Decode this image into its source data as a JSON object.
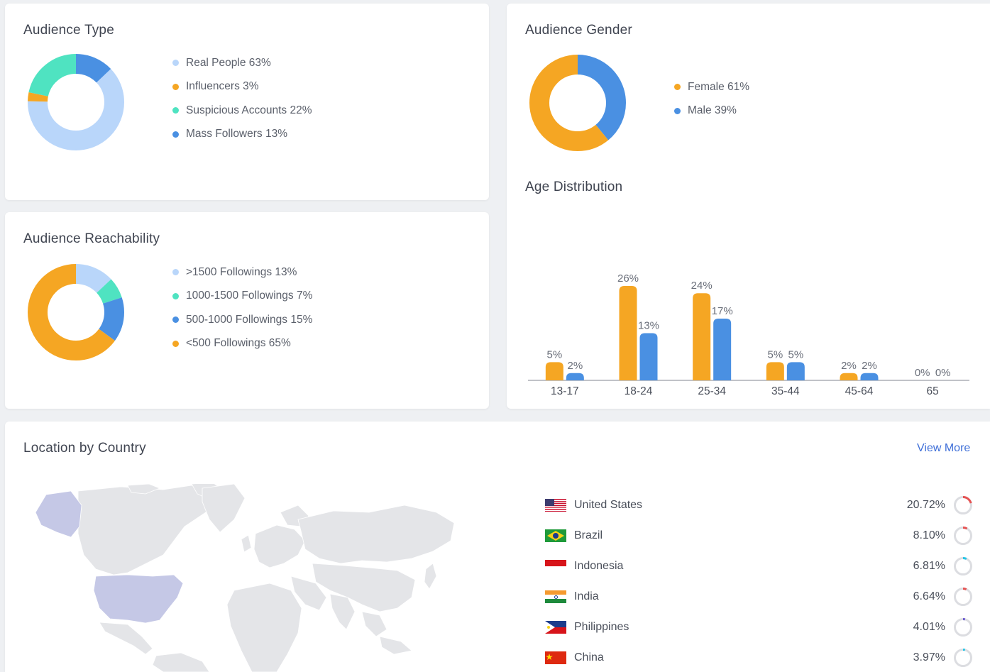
{
  "audience_type": {
    "title": "Audience Type",
    "legend": [
      {
        "label": "Real People 63%",
        "color": "#b9d6fa",
        "value": 63
      },
      {
        "label": "Influencers 3%",
        "color": "#f5a623",
        "value": 3
      },
      {
        "label": "Suspicious Accounts 22%",
        "color": "#4fe3c1",
        "value": 22
      },
      {
        "label": "Mass Followers 13%",
        "color": "#4a90e2",
        "value": 13
      }
    ]
  },
  "audience_reachability": {
    "title": "Audience Reachability",
    "legend": [
      {
        "label": ">1500 Followings 13%",
        "color": "#b9d6fa",
        "value": 13
      },
      {
        "label": "1000-1500 Followings 7%",
        "color": "#4fe3c1",
        "value": 7
      },
      {
        "label": "500-1000 Followings 15%",
        "color": "#4a90e2",
        "value": 15
      },
      {
        "label": "<500 Followings 65%",
        "color": "#f5a623",
        "value": 65
      }
    ]
  },
  "audience_gender": {
    "title": "Audience Gender",
    "legend": [
      {
        "label": "Female 61%",
        "color": "#f5a623",
        "value": 61
      },
      {
        "label": "Male 39%",
        "color": "#4a90e2",
        "value": 39
      }
    ]
  },
  "age_distribution": {
    "title": "Age Distribution"
  },
  "chart_data": {
    "type": "bar",
    "categories": [
      "13-17",
      "18-24",
      "25-34",
      "35-44",
      "45-64",
      "65"
    ],
    "series": [
      {
        "color": "#f5a623",
        "values": [
          5,
          26,
          24,
          5,
          2,
          0
        ]
      },
      {
        "color": "#4a90e2",
        "values": [
          2,
          13,
          17,
          5,
          2,
          0
        ]
      }
    ],
    "value_labels": [
      [
        "5%",
        "26%",
        "24%",
        "5%",
        "2%",
        "0%"
      ],
      [
        "2%",
        "13%",
        "17%",
        "5%",
        "2%",
        "0%"
      ]
    ],
    "ylim": [
      0,
      26
    ]
  },
  "location": {
    "title": "Location by Country",
    "view_more": "View More",
    "countries": [
      {
        "name": "United States",
        "pct": "20.72%",
        "value": 20.72,
        "ring_color": "#e55353",
        "flag": "us"
      },
      {
        "name": "Brazil",
        "pct": "8.10%",
        "value": 8.1,
        "ring_color": "#e55353",
        "flag": "br"
      },
      {
        "name": "Indonesia",
        "pct": "6.81%",
        "value": 6.81,
        "ring_color": "#29c5e6",
        "flag": "id"
      },
      {
        "name": "India",
        "pct": "6.64%",
        "value": 6.64,
        "ring_color": "#e55353",
        "flag": "in"
      },
      {
        "name": "Philippines",
        "pct": "4.01%",
        "value": 4.01,
        "ring_color": "#6d5bd0",
        "flag": "ph"
      },
      {
        "name": "China",
        "pct": "3.97%",
        "value": 3.97,
        "ring_color": "#29c5e6",
        "flag": "cn"
      }
    ]
  }
}
